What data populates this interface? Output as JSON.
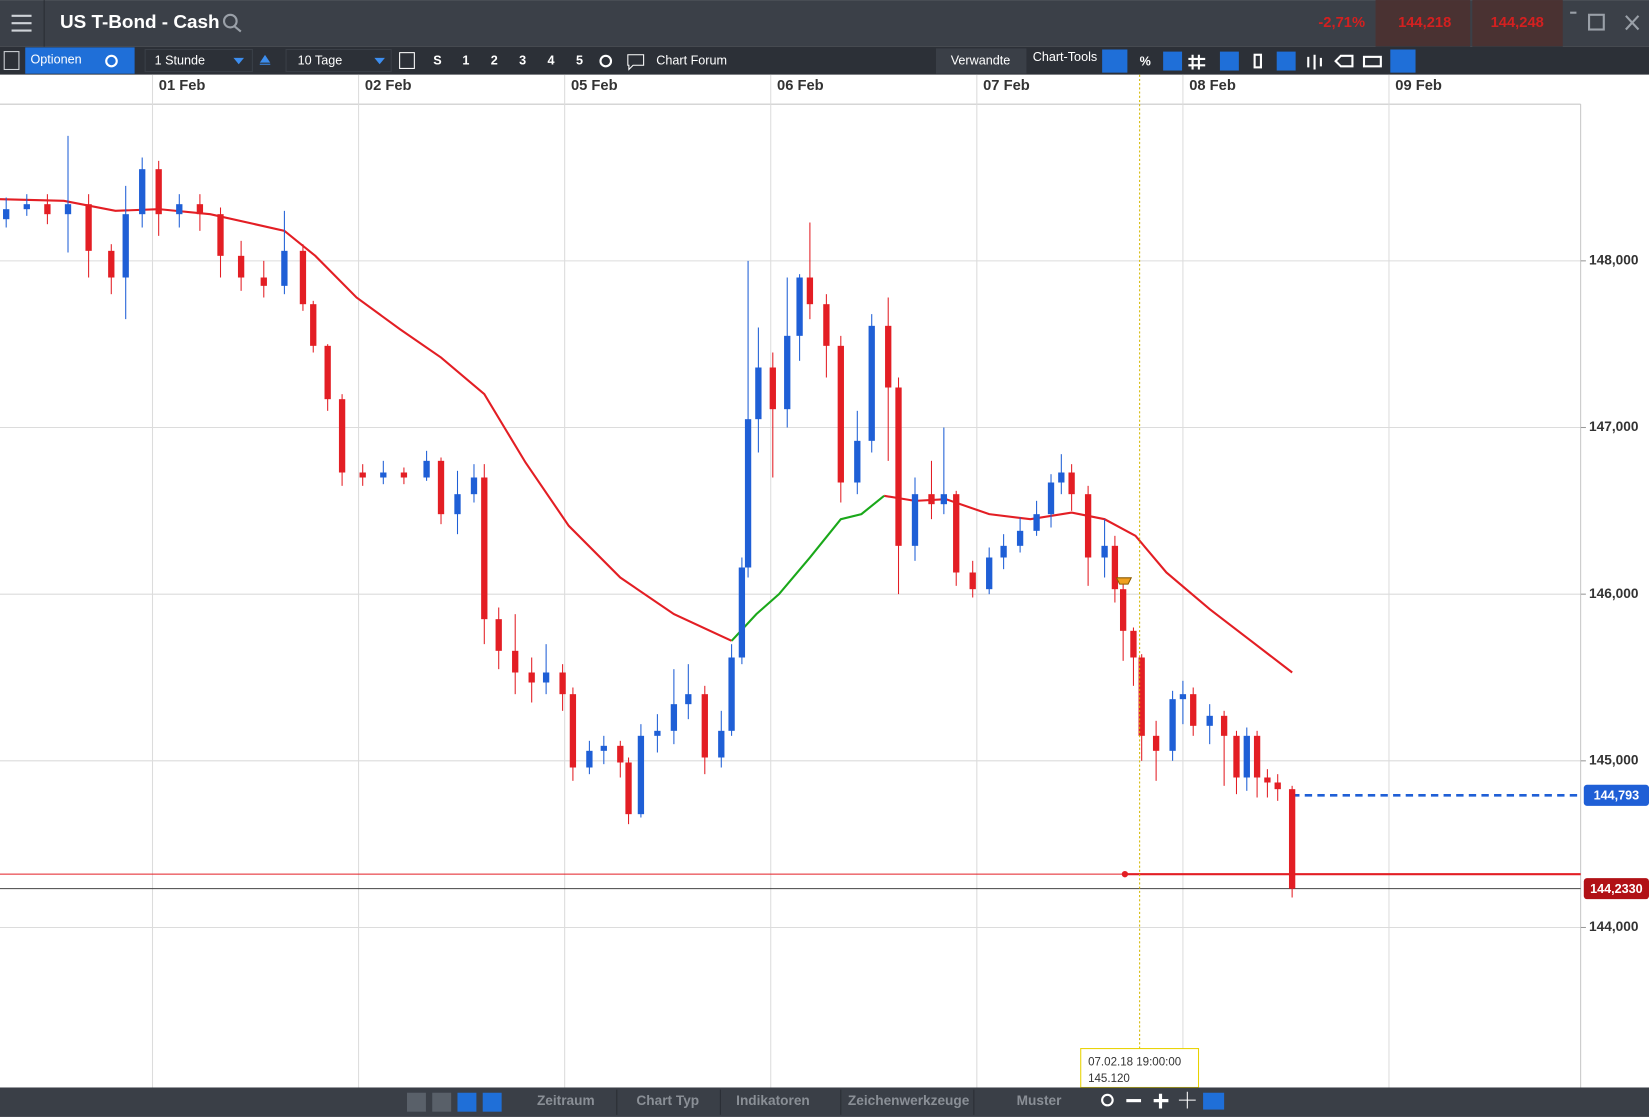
{
  "header": {
    "title": "US T-Bond - Cash",
    "change": "-2,71%",
    "sell": "144,218",
    "buy": "144,248"
  },
  "toolbar": {
    "options": "Optionen",
    "interval": "1 Stunde",
    "range": "10 Tage",
    "presets": [
      "S",
      "1",
      "2",
      "3",
      "4",
      "5"
    ],
    "forum": "Chart Forum",
    "related": "Verwandte",
    "tools": "Chart-Tools",
    "percent": "%"
  },
  "footer": {
    "tabs": [
      "Zeitraum",
      "Chart Typ",
      "Indikatoren",
      "Zeichenwerkzeuge",
      "Muster"
    ]
  },
  "chart_data": {
    "type": "candlestick",
    "up_color": "#1f5fd6",
    "down_color": "#e31e24",
    "xlim": [
      -0.74,
      6.93
    ],
    "ylim": [
      143.04,
      148.94
    ],
    "grid": true,
    "xticks": [
      {
        "value": 0,
        "label": "01 Feb"
      },
      {
        "value": 1,
        "label": "02 Feb"
      },
      {
        "value": 2,
        "label": "05 Feb"
      },
      {
        "value": 3,
        "label": "06 Feb"
      },
      {
        "value": 4,
        "label": "07 Feb"
      },
      {
        "value": 5,
        "label": "08 Feb"
      },
      {
        "value": 6,
        "label": "09 Feb"
      }
    ],
    "yticks": [
      {
        "value": 144,
        "label": "144,000"
      },
      {
        "value": 145,
        "label": "145,000"
      },
      {
        "value": 146,
        "label": "146,000"
      },
      {
        "value": 147,
        "label": "147,000"
      },
      {
        "value": 148,
        "label": "148,000"
      }
    ],
    "x": [
      -0.71,
      -0.61,
      -0.51,
      -0.41,
      -0.31,
      -0.2,
      -0.13,
      -0.05,
      0.03,
      0.13,
      0.23,
      0.33,
      0.43,
      0.54,
      0.64,
      0.73,
      0.78,
      0.85,
      0.92,
      1.02,
      1.12,
      1.22,
      1.33,
      1.4,
      1.48,
      1.56,
      1.61,
      1.68,
      1.76,
      1.84,
      1.91,
      1.99,
      2.04,
      2.12,
      2.19,
      2.27,
      2.31,
      2.37,
      2.45,
      2.53,
      2.6,
      2.68,
      2.76,
      2.81,
      2.86,
      2.89,
      2.94,
      3.01,
      3.08,
      3.14,
      3.19,
      3.27,
      3.34,
      3.42,
      3.49,
      3.57,
      3.62,
      3.7,
      3.78,
      3.84,
      3.9,
      3.98,
      4.06,
      4.13,
      4.21,
      4.29,
      4.36,
      4.41,
      4.46,
      4.54,
      4.62,
      4.67,
      4.71,
      4.76,
      4.8,
      4.87,
      4.95,
      5.0,
      5.05,
      5.13,
      5.2,
      5.26,
      5.31,
      5.36,
      5.41,
      5.46,
      5.53
    ],
    "open": [
      148.25,
      148.31,
      148.34,
      148.28,
      148.34,
      148.06,
      147.9,
      148.28,
      148.55,
      148.28,
      148.34,
      148.28,
      148.03,
      147.9,
      147.85,
      148.06,
      147.74,
      147.49,
      147.17,
      146.73,
      146.7,
      146.73,
      146.7,
      146.8,
      146.48,
      146.6,
      146.7,
      145.85,
      145.66,
      145.53,
      145.47,
      145.53,
      145.4,
      144.96,
      145.06,
      145.09,
      144.99,
      144.68,
      145.15,
      145.18,
      145.34,
      145.4,
      145.02,
      145.18,
      145.62,
      146.16,
      147.05,
      147.36,
      147.11,
      147.55,
      147.9,
      147.74,
      147.49,
      146.67,
      146.92,
      147.61,
      147.24,
      146.29,
      146.6,
      146.54,
      146.6,
      146.13,
      146.03,
      146.22,
      146.29,
      146.38,
      146.48,
      146.67,
      146.73,
      146.6,
      146.22,
      146.29,
      146.03,
      145.78,
      145.62,
      145.15,
      145.06,
      145.37,
      145.4,
      145.21,
      145.27,
      145.15,
      144.9,
      145.15,
      144.9,
      144.87,
      144.83
    ],
    "high": [
      148.38,
      148.4,
      148.4,
      148.75,
      148.4,
      148.1,
      148.45,
      148.62,
      148.6,
      148.4,
      148.4,
      148.32,
      148.12,
      148.0,
      148.3,
      148.1,
      147.76,
      147.5,
      147.2,
      146.78,
      146.8,
      146.76,
      146.86,
      146.82,
      146.74,
      146.78,
      146.78,
      145.92,
      145.88,
      145.62,
      145.7,
      145.58,
      145.44,
      145.12,
      145.15,
      145.12,
      145.02,
      145.22,
      145.28,
      145.55,
      145.58,
      145.45,
      145.3,
      145.7,
      146.22,
      148.0,
      147.6,
      147.45,
      147.9,
      147.92,
      148.23,
      147.8,
      147.55,
      147.1,
      147.68,
      147.78,
      147.3,
      146.7,
      146.8,
      147.0,
      146.62,
      146.2,
      146.28,
      146.36,
      146.46,
      146.56,
      146.72,
      146.84,
      146.78,
      146.65,
      146.45,
      146.35,
      146.1,
      145.8,
      145.64,
      145.24,
      145.42,
      145.48,
      145.44,
      145.34,
      145.3,
      145.18,
      145.2,
      145.18,
      144.95,
      144.92,
      144.85
    ],
    "low": [
      148.2,
      148.27,
      148.22,
      148.05,
      147.9,
      147.8,
      147.65,
      148.2,
      148.15,
      148.2,
      148.18,
      147.9,
      147.82,
      147.78,
      147.8,
      147.7,
      147.45,
      147.1,
      146.65,
      146.65,
      146.66,
      146.66,
      146.68,
      146.42,
      146.36,
      146.55,
      145.7,
      145.55,
      145.4,
      145.35,
      145.4,
      145.3,
      144.88,
      144.92,
      144.98,
      144.9,
      144.62,
      144.66,
      145.05,
      145.1,
      145.25,
      144.92,
      144.96,
      145.15,
      145.58,
      146.1,
      146.85,
      146.7,
      147.0,
      147.4,
      147.65,
      147.3,
      146.55,
      146.6,
      146.85,
      146.8,
      146.0,
      146.2,
      146.45,
      146.48,
      146.05,
      145.98,
      146.0,
      146.15,
      146.25,
      146.35,
      146.4,
      146.6,
      146.5,
      146.05,
      146.1,
      145.95,
      145.6,
      145.45,
      145.0,
      144.88,
      145.0,
      145.22,
      145.15,
      145.1,
      144.85,
      144.8,
      144.82,
      144.78,
      144.78,
      144.76,
      144.18
    ],
    "close": [
      148.31,
      148.34,
      148.28,
      148.34,
      148.06,
      147.9,
      148.28,
      148.55,
      148.28,
      148.34,
      148.28,
      148.03,
      147.9,
      147.85,
      148.06,
      147.74,
      147.49,
      147.17,
      146.73,
      146.7,
      146.73,
      146.7,
      146.8,
      146.48,
      146.6,
      146.7,
      145.85,
      145.66,
      145.53,
      145.47,
      145.53,
      145.4,
      144.96,
      145.06,
      145.09,
      144.99,
      144.68,
      145.15,
      145.18,
      145.34,
      145.4,
      145.02,
      145.18,
      145.62,
      146.16,
      147.05,
      147.36,
      147.11,
      147.55,
      147.9,
      147.74,
      147.49,
      146.67,
      146.92,
      147.61,
      147.24,
      146.29,
      146.6,
      146.54,
      146.6,
      146.13,
      146.03,
      146.22,
      146.29,
      146.38,
      146.48,
      146.67,
      146.73,
      146.6,
      146.22,
      146.29,
      146.03,
      145.78,
      145.62,
      145.15,
      145.06,
      145.37,
      145.4,
      145.21,
      145.27,
      145.15,
      144.9,
      145.15,
      144.9,
      144.87,
      144.83,
      144.233
    ],
    "lines": [
      {
        "color": "#e31e24",
        "x": [
          -0.74,
          -0.43,
          -0.18,
          0.03,
          0.28,
          0.64,
          0.79,
          0.99,
          1.2,
          1.4,
          1.61,
          1.81,
          2.02,
          2.27,
          2.53,
          2.81,
          2.93,
          3.04,
          3.19,
          3.34,
          3.44,
          3.55,
          3.7,
          3.85,
          4.06,
          4.26,
          4.46,
          4.62,
          4.77,
          4.92,
          5.13,
          5.33,
          5.53
        ],
        "values": [
          148.37,
          148.36,
          148.3,
          148.31,
          148.28,
          148.18,
          148.03,
          147.78,
          147.59,
          147.42,
          147.2,
          146.79,
          146.41,
          146.1,
          145.88,
          145.72,
          null,
          null,
          null,
          null,
          null,
          146.59,
          146.56,
          146.57,
          146.48,
          146.45,
          146.49,
          146.45,
          146.35,
          146.13,
          145.91,
          145.72,
          145.53
        ]
      },
      {
        "color": "#1aa81a",
        "x": [
          -0.74,
          -0.43,
          -0.18,
          0.03,
          0.28,
          0.64,
          0.79,
          0.99,
          1.2,
          1.4,
          1.61,
          1.81,
          2.02,
          2.27,
          2.53,
          2.81,
          2.93,
          3.04,
          3.19,
          3.34,
          3.44,
          3.55,
          3.7,
          3.85,
          4.06,
          4.26,
          4.46,
          4.62,
          4.77,
          4.92,
          5.13,
          5.33,
          5.53
        ],
        "values": [
          null,
          null,
          null,
          null,
          null,
          null,
          null,
          null,
          null,
          null,
          null,
          null,
          null,
          null,
          null,
          145.72,
          145.88,
          146.0,
          146.22,
          146.45,
          146.48,
          146.59,
          null,
          null,
          null,
          null,
          null,
          null,
          null,
          null,
          null,
          null,
          null
        ]
      }
    ],
    "levels": [
      {
        "value": 144.793,
        "label": "144,793",
        "color": "#1f5fd6",
        "style": "dashed"
      },
      {
        "value": 144.233,
        "label": "144,2330",
        "color": "#b11116",
        "style": "solid"
      },
      {
        "value": 144.32,
        "color": "#e31e24",
        "style": "solid"
      }
    ],
    "crosshair": {
      "x": 4.79,
      "date": "07.02.18 19:00:00",
      "value": 145.12,
      "value_label": "145.120"
    }
  }
}
